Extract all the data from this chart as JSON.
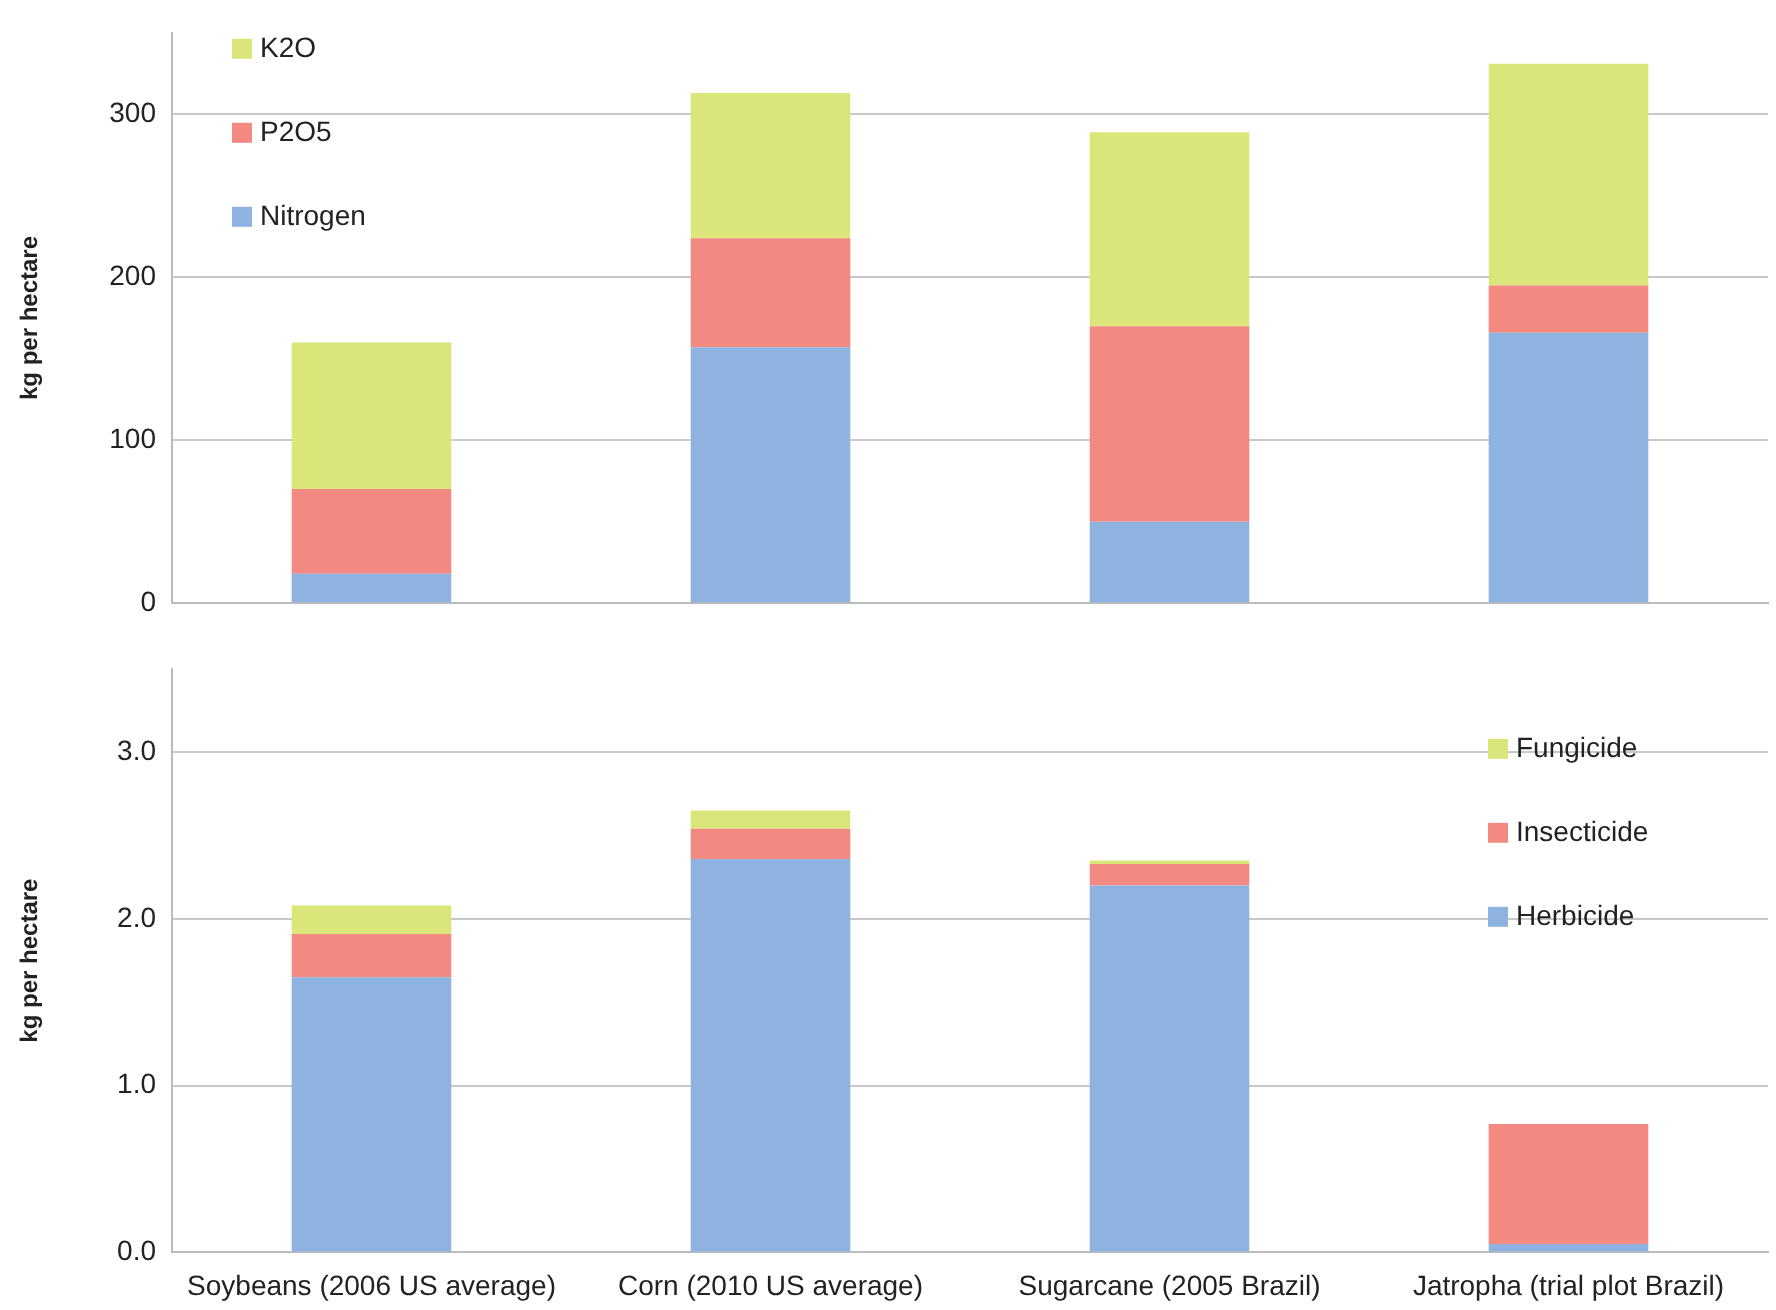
{
  "chart_data": [
    {
      "type": "bar",
      "stacked": true,
      "categories": [
        null,
        null,
        null,
        null
      ],
      "ylabel": "kg per hectare",
      "ylim": [
        0,
        350
      ],
      "yticks": [
        0,
        100,
        200,
        300
      ],
      "grid": "y",
      "legend": "top left",
      "tick_labels": "y",
      "series": [
        {
          "name": "Nitrogen",
          "color": "#8fb3e0",
          "values": [
            18,
            157,
            50,
            166
          ]
        },
        {
          "name": "P2O5",
          "color": "#f28a82",
          "values": [
            52,
            67,
            120,
            29
          ]
        },
        {
          "name": "K2O",
          "color": "#dbe67a",
          "values": [
            90,
            89,
            119,
            136
          ]
        }
      ]
    },
    {
      "type": "bar",
      "stacked": true,
      "categories": [
        "Soybeans (2006 US average)",
        "Corn (2010 US average)",
        "Sugarcane (2005 Brazil)",
        "Jatropha (trial plot Brazil)"
      ],
      "ylabel": "kg per hectare",
      "ylim": [
        0,
        3.5
      ],
      "yticks": [
        {
          "value": 0,
          "label": "0.0"
        },
        {
          "value": 1,
          "label": "1.0"
        },
        {
          "value": 2,
          "label": "2.0"
        },
        {
          "value": 3,
          "label": "3.0"
        }
      ],
      "grid": "y",
      "legend": "right",
      "series": [
        {
          "name": "Herbicide",
          "color": "#8fb3e0",
          "values": [
            1.65,
            2.36,
            2.2,
            0.05
          ]
        },
        {
          "name": "Insecticide",
          "color": "#f28a82",
          "values": [
            0.26,
            0.18,
            0.13,
            0.72
          ]
        },
        {
          "name": "Fungicide",
          "color": "#dbe67a",
          "values": [
            0.17,
            0.11,
            0.02,
            0
          ]
        }
      ]
    }
  ]
}
